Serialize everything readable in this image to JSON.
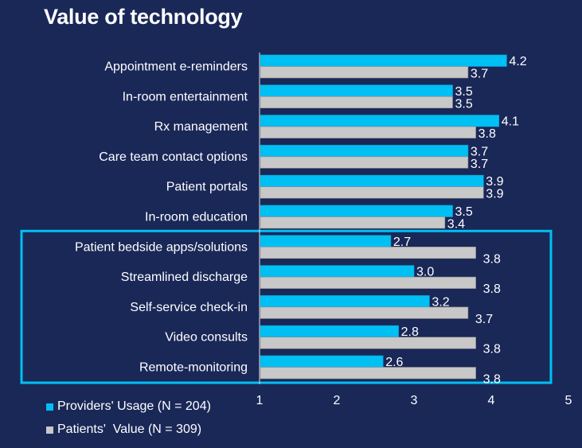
{
  "chart_data": {
    "type": "bar",
    "orientation": "horizontal",
    "title": "Value of technology",
    "categories": [
      "Appointment e-reminders",
      "In-room entertainment",
      "Rx management",
      "Care team contact options",
      "Patient portals",
      "In-room education",
      "Patient bedside apps/solutions",
      "Streamlined discharge",
      "Self-service check-in",
      "Video consults",
      "Remote-monitoring"
    ],
    "series": [
      {
        "name": "Providers' Usage (N = 204)",
        "color": "#00bff3",
        "values": [
          4.2,
          3.5,
          4.1,
          3.7,
          3.9,
          3.5,
          2.7,
          3.0,
          3.2,
          2.8,
          2.6
        ],
        "labels": [
          "4.2",
          "3.5",
          "4.1",
          "3.7",
          "3.9",
          "3.5",
          "2.7",
          "3.0",
          "3.2",
          "2.8",
          "2.6"
        ]
      },
      {
        "name": "Patients'  Value (N = 309)",
        "color": "#c8c8c8",
        "values": [
          3.7,
          3.5,
          3.8,
          3.7,
          3.9,
          3.4,
          3.8,
          3.8,
          3.7,
          3.8,
          3.8
        ],
        "labels": [
          "3.7",
          "3.5",
          "3.8",
          "3.7",
          "3.9",
          "3.4",
          "3.8",
          "3.8",
          "3.7",
          "3.8",
          "3.8"
        ]
      }
    ],
    "xlim": [
      1,
      5
    ],
    "xticks": [
      "1",
      "2",
      "3",
      "4",
      "5"
    ],
    "xlabel": "",
    "ylabel": "",
    "grid": false,
    "legend_position": "bottom-left",
    "highlight": {
      "from_category": "Patient bedside apps/solutions",
      "to_category": "Remote-monitoring",
      "color": "#00bff3"
    }
  }
}
